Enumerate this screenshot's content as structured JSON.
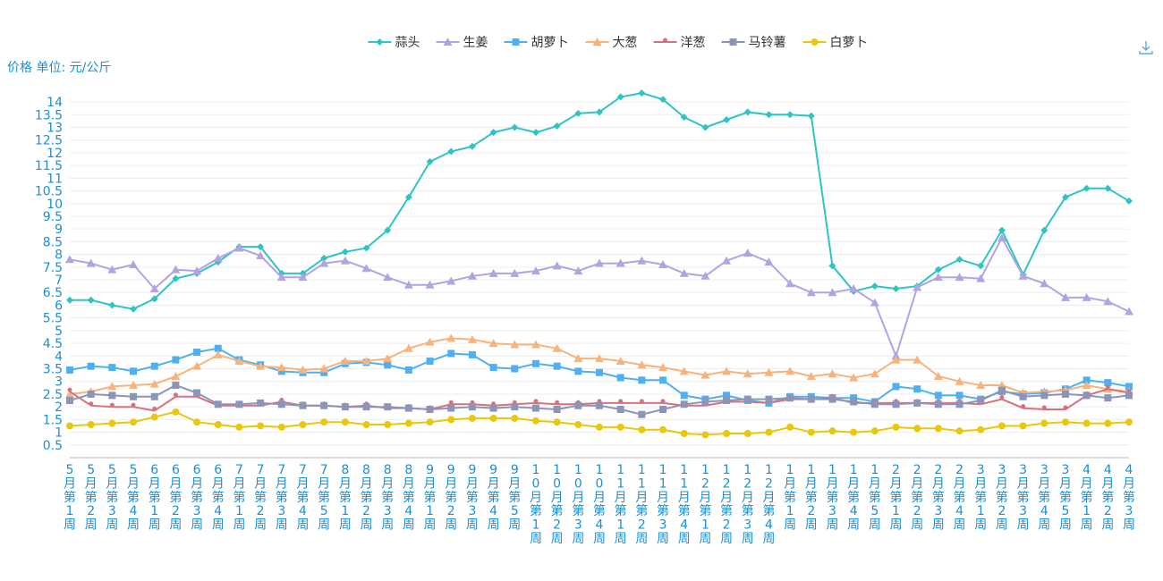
{
  "chart_data": {
    "type": "line",
    "ylabel": "价格 单位: 元/公斤",
    "ylim": [
      0,
      14.6
    ],
    "y_ticks": [
      0.5,
      1,
      1.5,
      2,
      2.5,
      3,
      3.5,
      4,
      4.5,
      5,
      5.5,
      6,
      6.5,
      7,
      7.5,
      8,
      8.5,
      9,
      9.5,
      10,
      10.5,
      11,
      11.5,
      12,
      12.5,
      13,
      13.5,
      14
    ],
    "grid": "horizontal",
    "legend_position": "top-center",
    "categories": [
      "5月第1周",
      "5月第2周",
      "5月第3周",
      "5月第4周",
      "6月第1周",
      "6月第2周",
      "6月第3周",
      "6月第4周",
      "7月第1周",
      "7月第2周",
      "7月第3周",
      "7月第4周",
      "7月第5周",
      "8月第1周",
      "8月第2周",
      "8月第3周",
      "8月第4周",
      "9月第1周",
      "9月第2周",
      "9月第3周",
      "9月第4周",
      "9月第5周",
      "10月第1周",
      "10月第2周",
      "10月第3周",
      "10月第4周",
      "11月第1周",
      "11月第2周",
      "11月第3周",
      "11月第4周",
      "12月第1周",
      "12月第2周",
      "12月第3周",
      "12月第4周",
      "1月第1周",
      "1月第2周",
      "1月第3周",
      "1月第4周",
      "1月第5周",
      "2月第1周",
      "2月第2周",
      "2月第3周",
      "2月第4周",
      "3月第1周",
      "3月第2周",
      "3月第3周",
      "3月第4周",
      "3月第5周",
      "4月第1周",
      "4月第2周",
      "4月第3周"
    ],
    "series": [
      {
        "name": "蒜头",
        "color": "#2ec4c4",
        "marker": "diamond",
        "values": [
          6.2,
          6.2,
          6.0,
          5.85,
          6.25,
          7.05,
          7.25,
          7.7,
          8.3,
          8.3,
          7.25,
          7.25,
          7.85,
          8.1,
          8.25,
          8.95,
          10.25,
          11.65,
          12.05,
          12.25,
          12.8,
          13.0,
          12.8,
          13.05,
          13.55,
          13.6,
          14.2,
          14.35,
          14.1,
          13.4,
          13.0,
          13.3,
          13.6,
          13.5,
          13.5,
          13.45,
          7.55,
          6.55,
          6.75,
          6.65,
          6.75,
          7.4,
          7.8,
          7.55,
          8.95,
          7.2,
          8.95,
          10.25,
          10.6,
          10.6,
          10.1
        ]
      },
      {
        "name": "生姜",
        "color": "#b3a3e0",
        "marker": "triangle",
        "values": [
          7.8,
          7.65,
          7.4,
          7.6,
          6.65,
          7.4,
          7.35,
          7.85,
          8.25,
          7.95,
          7.1,
          7.1,
          7.65,
          7.75,
          7.45,
          7.1,
          6.8,
          6.8,
          6.95,
          7.15,
          7.25,
          7.25,
          7.35,
          7.55,
          7.35,
          7.65,
          7.65,
          7.75,
          7.6,
          7.25,
          7.15,
          7.75,
          8.05,
          7.7,
          6.85,
          6.5,
          6.5,
          6.65,
          6.1,
          4.0,
          6.7,
          7.1,
          7.1,
          7.05,
          8.65,
          7.15,
          6.85,
          6.3,
          6.3,
          6.15,
          5.75
        ]
      },
      {
        "name": "胡萝卜",
        "color": "#4eb0f0",
        "marker": "square",
        "values": [
          3.45,
          3.6,
          3.55,
          3.4,
          3.6,
          3.85,
          4.15,
          4.3,
          3.85,
          3.65,
          3.4,
          3.35,
          3.35,
          3.7,
          3.75,
          3.65,
          3.45,
          3.8,
          4.1,
          4.05,
          3.55,
          3.5,
          3.7,
          3.6,
          3.4,
          3.35,
          3.15,
          3.05,
          3.05,
          2.45,
          2.3,
          2.45,
          2.25,
          2.15,
          2.4,
          2.4,
          2.35,
          2.35,
          2.2,
          2.8,
          2.7,
          2.45,
          2.45,
          2.3,
          2.6,
          2.5,
          2.55,
          2.7,
          3.05,
          2.95,
          2.8
        ]
      },
      {
        "name": "大葱",
        "color": "#f7b37b",
        "marker": "triangle",
        "values": [
          2.5,
          2.6,
          2.8,
          2.85,
          2.9,
          3.2,
          3.6,
          4.05,
          3.8,
          3.6,
          3.55,
          3.45,
          3.5,
          3.8,
          3.8,
          3.9,
          4.3,
          4.55,
          4.7,
          4.65,
          4.5,
          4.45,
          4.45,
          4.3,
          3.9,
          3.9,
          3.8,
          3.65,
          3.55,
          3.4,
          3.25,
          3.4,
          3.3,
          3.35,
          3.4,
          3.2,
          3.3,
          3.15,
          3.3,
          3.85,
          3.85,
          3.2,
          3.0,
          2.85,
          2.85,
          2.55,
          2.6,
          2.65,
          2.85,
          2.7,
          2.6
        ]
      },
      {
        "name": "洋葱",
        "color": "#d9717c",
        "marker": "pin",
        "values": [
          2.6,
          2.05,
          2.0,
          2.0,
          1.85,
          2.4,
          2.4,
          2.05,
          2.05,
          2.05,
          2.2,
          2.05,
          2.05,
          2.0,
          2.05,
          1.95,
          1.95,
          1.9,
          2.1,
          2.1,
          2.05,
          2.1,
          2.15,
          2.1,
          2.1,
          2.15,
          2.15,
          2.15,
          2.15,
          2.05,
          2.05,
          2.2,
          2.2,
          2.15,
          2.3,
          2.3,
          2.35,
          2.15,
          2.15,
          2.15,
          2.15,
          2.15,
          2.15,
          2.1,
          2.3,
          1.95,
          1.9,
          1.9,
          2.45,
          2.7,
          2.55
        ]
      },
      {
        "name": "马铃薯",
        "color": "#8c94b8",
        "marker": "square",
        "values": [
          2.25,
          2.5,
          2.45,
          2.4,
          2.4,
          2.85,
          2.55,
          2.1,
          2.1,
          2.15,
          2.1,
          2.05,
          2.05,
          2.0,
          2.0,
          2.0,
          1.95,
          1.9,
          1.95,
          2.0,
          1.95,
          2.0,
          1.95,
          1.9,
          2.05,
          2.05,
          1.9,
          1.7,
          1.9,
          2.1,
          2.2,
          2.25,
          2.3,
          2.3,
          2.35,
          2.3,
          2.3,
          2.2,
          2.1,
          2.1,
          2.15,
          2.1,
          2.1,
          2.25,
          2.65,
          2.4,
          2.45,
          2.5,
          2.45,
          2.35,
          2.45
        ]
      },
      {
        "name": "白萝卜",
        "color": "#e8c80a",
        "marker": "circle",
        "values": [
          1.25,
          1.3,
          1.35,
          1.4,
          1.6,
          1.8,
          1.4,
          1.3,
          1.2,
          1.25,
          1.2,
          1.3,
          1.4,
          1.4,
          1.3,
          1.3,
          1.35,
          1.4,
          1.5,
          1.55,
          1.55,
          1.55,
          1.45,
          1.4,
          1.3,
          1.2,
          1.2,
          1.1,
          1.1,
          0.95,
          0.9,
          0.95,
          0.95,
          1.0,
          1.2,
          1.0,
          1.05,
          1.0,
          1.05,
          1.2,
          1.15,
          1.15,
          1.05,
          1.1,
          1.25,
          1.25,
          1.35,
          1.4,
          1.35,
          1.35,
          1.4
        ]
      }
    ]
  },
  "icons": {
    "download": "download-icon"
  }
}
